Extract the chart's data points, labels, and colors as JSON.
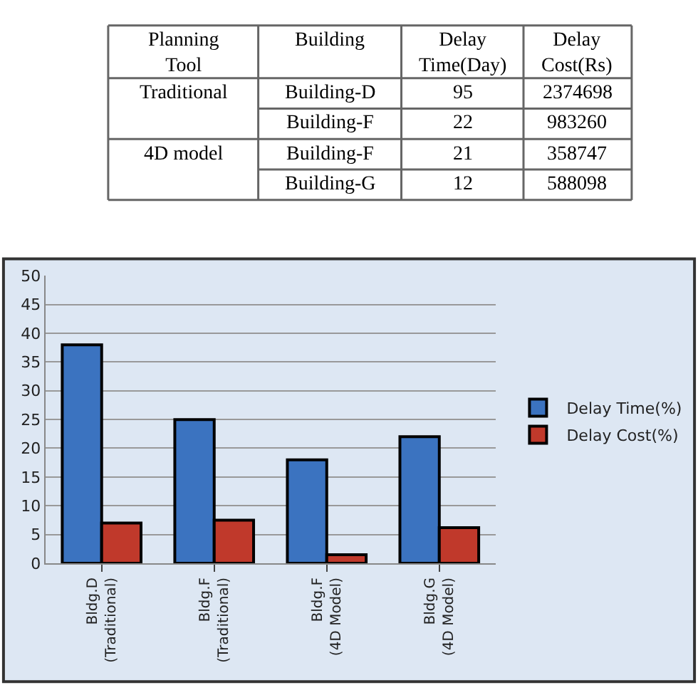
{
  "chart_data": [
    {
      "type": "other",
      "categories": [
        "Planning\nTool",
        "Building",
        "Delay\nTime(Day)",
        "Delay\nCost(Rs)"
      ],
      "cells": [
        [
          "Traditional",
          "Building-D",
          "95",
          "2374698"
        ],
        [
          null,
          "Building-F",
          "22",
          "983260"
        ],
        [
          "4D model",
          "Building-F",
          "21",
          "358747"
        ],
        [
          null,
          "Building-G",
          "12",
          "588098"
        ]
      ]
    },
    {
      "type": "bar",
      "categories": [
        "Bldg.D\n(Traditional)",
        "Bldg.F\n(Traditional)",
        "Bldg.F\n(4D Model)",
        "Bldg.G\n(4D Model)"
      ],
      "series": [
        {
          "name": "Delay Time(%)",
          "color": "#3b73c0",
          "values": [
            38,
            25,
            18,
            22
          ]
        },
        {
          "name": "Delay Cost(%)",
          "color": "#c0392b",
          "values": [
            7,
            7.5,
            1.5,
            6.2
          ]
        }
      ],
      "ylim": [
        0,
        50
      ],
      "yticks": [
        0,
        5,
        10,
        15,
        20,
        25,
        30,
        35,
        40,
        45,
        50
      ],
      "grid": "y",
      "legend": "right"
    }
  ]
}
